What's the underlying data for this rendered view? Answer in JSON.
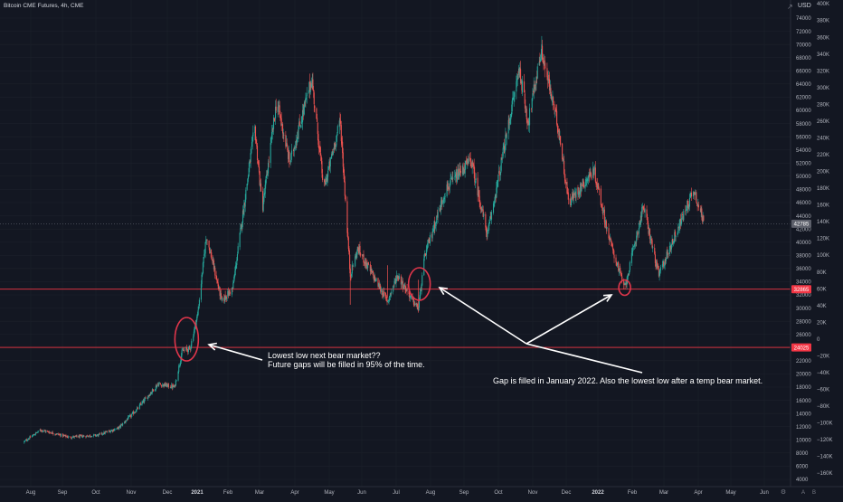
{
  "header": {
    "title": "Bitcoin CME Futures, 4h, CME",
    "currency": "USD"
  },
  "chart_data": {
    "type": "candlestick",
    "title": "Bitcoin CME Futures, 4h, CME",
    "price_axis": {
      "ticks": [
        "74000",
        "72000",
        "70000",
        "68000",
        "66000",
        "64000",
        "62000",
        "60000",
        "58000",
        "56000",
        "54000",
        "52000",
        "50000",
        "48000",
        "46000",
        "44000",
        "42000",
        "40000",
        "38000",
        "36000",
        "34000",
        "32000",
        "30000",
        "28000",
        "26000",
        "24000",
        "22000",
        "20000",
        "18000",
        "16000",
        "14000",
        "12000",
        "10000",
        "8000",
        "6000",
        "4000"
      ],
      "range": [
        3500,
        76500
      ]
    },
    "secondary_axis": {
      "ticks": [
        "400K",
        "380K",
        "360K",
        "340K",
        "320K",
        "300K",
        "280K",
        "260K",
        "240K",
        "220K",
        "200K",
        "180K",
        "160K",
        "140K",
        "120K",
        "100K",
        "80K",
        "60K",
        "40K",
        "20K",
        "0",
        "−20K",
        "−40K",
        "−60K",
        "−80K",
        "−100K",
        "−120K",
        "−140K",
        "−160K"
      ]
    },
    "time_axis": {
      "labels": [
        "Aug",
        "Sep",
        "Oct",
        "Nov",
        "Dec",
        "2021",
        "Feb",
        "Mar",
        "Apr",
        "May",
        "Jun",
        "Jul",
        "Aug",
        "Sep",
        "Oct",
        "Nov",
        "Dec",
        "2022",
        "Feb",
        "Mar",
        "Apr",
        "May",
        "Jun"
      ],
      "bold": [
        "2021",
        "2022"
      ]
    },
    "price_path": [
      [
        "2020-07-25",
        9600
      ],
      [
        "2020-08-10",
        11500
      ],
      [
        "2020-09-05",
        10400
      ],
      [
        "2020-10-01",
        10700
      ],
      [
        "2020-10-20",
        11800
      ],
      [
        "2020-11-05",
        14500
      ],
      [
        "2020-11-25",
        18500
      ],
      [
        "2020-12-10",
        18000
      ],
      [
        "2020-12-17",
        23500
      ],
      [
        "2020-12-24",
        23800
      ],
      [
        "2020-12-31",
        29000
      ],
      [
        "2021-01-08",
        41000
      ],
      [
        "2021-01-22",
        31000
      ],
      [
        "2021-02-01",
        33000
      ],
      [
        "2021-02-21",
        57500
      ],
      [
        "2021-02-28",
        45000
      ],
      [
        "2021-03-13",
        61500
      ],
      [
        "2021-03-25",
        52000
      ],
      [
        "2021-04-14",
        64800
      ],
      [
        "2021-04-25",
        48000
      ],
      [
        "2021-05-10",
        58500
      ],
      [
        "2021-05-19",
        35000
      ],
      [
        "2021-05-26",
        39000
      ],
      [
        "2021-06-22",
        31000
      ],
      [
        "2021-07-01",
        35000
      ],
      [
        "2021-07-20",
        29800
      ],
      [
        "2021-07-26",
        38000
      ],
      [
        "2021-08-14",
        48000
      ],
      [
        "2021-09-06",
        52500
      ],
      [
        "2021-09-21",
        41000
      ],
      [
        "2021-10-15",
        62000
      ],
      [
        "2021-10-20",
        66500
      ],
      [
        "2021-10-28",
        58000
      ],
      [
        "2021-11-09",
        69200
      ],
      [
        "2021-11-25",
        57000
      ],
      [
        "2021-12-04",
        46000
      ],
      [
        "2021-12-27",
        51000
      ],
      [
        "2022-01-10",
        40500
      ],
      [
        "2022-01-24",
        33000
      ],
      [
        "2022-02-10",
        45500
      ],
      [
        "2022-02-24",
        35000
      ],
      [
        "2022-03-28",
        48000
      ],
      [
        "2022-04-06",
        43000
      ]
    ],
    "horizontal_lines": [
      {
        "value": 42785,
        "label": "42785",
        "color": "#787b86"
      },
      {
        "value": 32865,
        "label": "32865",
        "color": "#f23645"
      },
      {
        "value": 24025,
        "label": "24025",
        "color": "#f23645"
      }
    ],
    "annotations": {
      "note1": "Lowest low next bear market??",
      "note2": "Future gaps will be filled in 95% of the time.",
      "note3": "Gap is filled in January 2022. Also the lowest low after a temp bear market."
    },
    "colors": {
      "up": "#26a69a",
      "down": "#ef5350",
      "circle": "#e0364b",
      "arrow": "#ffffff"
    }
  }
}
